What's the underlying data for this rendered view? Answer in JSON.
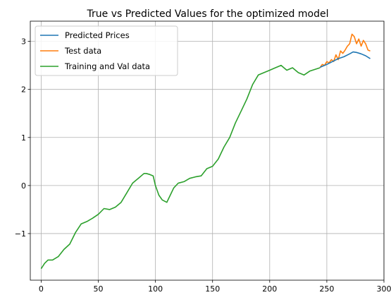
{
  "chart_data": {
    "type": "line",
    "title": "True vs Predicted Values for the optimized model",
    "xlabel": "",
    "ylabel": "",
    "xlim": [
      -9.5,
      300
    ],
    "ylim": [
      -1.97,
      3.42
    ],
    "xticks": [
      0,
      50,
      100,
      150,
      200,
      250,
      300
    ],
    "yticks": [
      -1,
      0,
      1,
      2,
      3
    ],
    "ytick_labels": [
      "−1",
      "0",
      "1",
      "2",
      "3"
    ],
    "grid": true,
    "legend_position": "top-left",
    "series": [
      {
        "name": "Predicted Prices",
        "color": "#1f77b4",
        "x": [
          244,
          250,
          255,
          260,
          265,
          270,
          273,
          276,
          280,
          284,
          288
        ],
        "y": [
          2.46,
          2.52,
          2.58,
          2.64,
          2.68,
          2.74,
          2.78,
          2.77,
          2.74,
          2.7,
          2.64
        ]
      },
      {
        "name": "Test data",
        "color": "#ff7f0e",
        "x": [
          244,
          246,
          248,
          250,
          252,
          254,
          256,
          258,
          260,
          262,
          264,
          266,
          268,
          270,
          272,
          274,
          276,
          278,
          280,
          282,
          284,
          286,
          288
        ],
        "y": [
          2.45,
          2.52,
          2.5,
          2.58,
          2.55,
          2.62,
          2.58,
          2.72,
          2.62,
          2.8,
          2.75,
          2.82,
          2.9,
          2.95,
          3.15,
          3.1,
          2.95,
          3.05,
          2.9,
          3.02,
          2.95,
          2.82,
          2.8
        ]
      },
      {
        "name": "Training and Val data",
        "color": "#2ca02c",
        "x": [
          0,
          3,
          6,
          10,
          15,
          20,
          25,
          30,
          35,
          40,
          45,
          50,
          55,
          60,
          65,
          70,
          75,
          80,
          85,
          90,
          92,
          95,
          98,
          100,
          103,
          106,
          110,
          113,
          116,
          120,
          125,
          130,
          135,
          140,
          145,
          150,
          155,
          160,
          165,
          170,
          175,
          180,
          185,
          190,
          195,
          200,
          205,
          210,
          215,
          220,
          225,
          230,
          235,
          240,
          244
        ],
        "y": [
          -1.73,
          -1.62,
          -1.55,
          -1.55,
          -1.48,
          -1.33,
          -1.22,
          -0.98,
          -0.8,
          -0.75,
          -0.68,
          -0.6,
          -0.48,
          -0.5,
          -0.45,
          -0.35,
          -0.15,
          0.05,
          0.15,
          0.25,
          0.25,
          0.23,
          0.2,
          0.0,
          -0.2,
          -0.3,
          -0.35,
          -0.2,
          -0.05,
          0.05,
          0.08,
          0.15,
          0.18,
          0.2,
          0.35,
          0.4,
          0.55,
          0.8,
          1.0,
          1.3,
          1.55,
          1.8,
          2.1,
          2.3,
          2.35,
          2.4,
          2.45,
          2.5,
          2.4,
          2.45,
          2.35,
          2.3,
          2.38,
          2.42,
          2.45
        ]
      }
    ]
  }
}
